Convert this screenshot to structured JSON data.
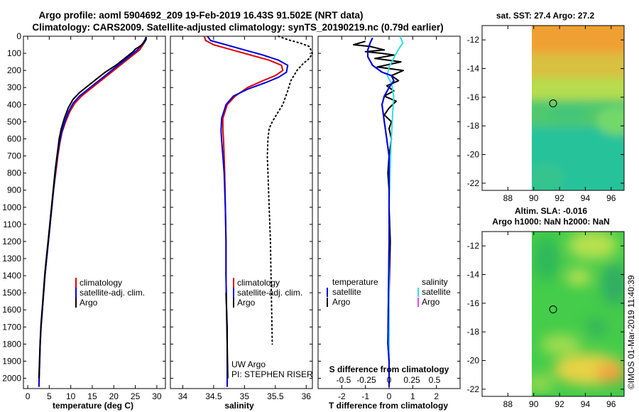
{
  "title": {
    "line1": "Argo profile: aoml 5904692_209 19-Feb-2019 16.43S 91.502E (NRT data)",
    "line2": "Climatology: CARS2009. Satellite-adjusted climatology: synTS_20190219.nc (0.79d earlier)"
  },
  "colors": {
    "climatology": "#e00000",
    "satellite": "#0000dd",
    "argo": "#000000",
    "sal_sat": "#33dddd",
    "sal_argo": "#ee44ee",
    "map_white": "#ffffff"
  },
  "depth_ticks": [
    0,
    100,
    200,
    300,
    400,
    500,
    600,
    700,
    800,
    900,
    1000,
    1100,
    1200,
    1300,
    1400,
    1500,
    1600,
    1700,
    1800,
    1900,
    2000
  ],
  "chart_data": [
    {
      "type": "line",
      "id": "temperature",
      "xlabel": "temperature (deg C)",
      "ylabel": "",
      "xlim": [
        -1,
        32
      ],
      "ylim": [
        2060,
        0
      ],
      "xticks": [
        0,
        5,
        10,
        15,
        20,
        25,
        30
      ],
      "xtick_labels": [
        "0",
        "5",
        "10",
        "15",
        "20",
        "25",
        "30"
      ],
      "legend": [
        "climatology",
        "satellite-adj. clim.",
        "Argo"
      ],
      "series": [
        {
          "name": "climatology",
          "x": [
            27.6,
            27.4,
            26.8,
            26.0,
            24.5,
            22.5,
            20.5,
            18.5,
            16.5,
            14.5,
            12.5,
            11.0,
            9.8,
            8.8,
            8.0,
            7.5,
            7.0,
            6.5,
            6.0,
            5.6,
            5.2,
            4.8,
            4.4,
            4.0,
            3.7,
            3.4,
            3.1,
            2.9,
            2.6
          ],
          "y": [
            5,
            20,
            50,
            80,
            110,
            150,
            190,
            230,
            270,
            310,
            350,
            390,
            440,
            500,
            560,
            620,
            700,
            800,
            900,
            1000,
            1100,
            1200,
            1300,
            1400,
            1500,
            1600,
            1700,
            1800,
            2050
          ]
        },
        {
          "name": "satellite-adj. clim.",
          "x": [
            27.5,
            27.3,
            26.5,
            25.5,
            24.0,
            22.0,
            20.0,
            18.0,
            16.0,
            14.0,
            12.0,
            10.6,
            9.5,
            8.6,
            7.9,
            7.4,
            6.9,
            6.4,
            6.0,
            5.6,
            5.2,
            4.8,
            4.4,
            4.0,
            3.7,
            3.4,
            3.1,
            2.9,
            2.6
          ],
          "y": [
            5,
            20,
            50,
            80,
            110,
            150,
            190,
            230,
            270,
            310,
            350,
            390,
            440,
            500,
            560,
            620,
            700,
            800,
            900,
            1000,
            1100,
            1200,
            1300,
            1400,
            1500,
            1600,
            1700,
            1800,
            2050
          ]
        },
        {
          "name": "Argo",
          "x": [
            27.5,
            27.5,
            27.0,
            26.0,
            25.0,
            24.5,
            23.5,
            22.0,
            20.5,
            18.0,
            16.0,
            14.0,
            12.0,
            10.5,
            9.4,
            8.5,
            7.8,
            7.3,
            6.9,
            6.4,
            6.0,
            5.6,
            5.2,
            4.8,
            4.4,
            4.0,
            3.7,
            3.4,
            3.1,
            2.9,
            2.6
          ],
          "y": [
            5,
            20,
            40,
            60,
            75,
            90,
            110,
            140,
            170,
            210,
            250,
            290,
            330,
            370,
            420,
            480,
            540,
            600,
            680,
            780,
            880,
            980,
            1080,
            1180,
            1280,
            1380,
            1480,
            1580,
            1680,
            1780,
            2000
          ]
        }
      ]
    },
    {
      "type": "line",
      "id": "salinity",
      "xlabel": "salinity",
      "ylabel": "",
      "xlim": [
        33.8,
        36.1
      ],
      "ylim": [
        2060,
        0
      ],
      "xticks": [
        34,
        34.5,
        35,
        35.5,
        36
      ],
      "xtick_labels": [
        "34",
        "34.5",
        "35",
        "35.5",
        "36"
      ],
      "legend": [
        "climatology",
        "satellite-adj. clim.",
        "Argo"
      ],
      "annotations": [
        "UW Argo",
        "PI: STEPHEN RISER"
      ],
      "series": [
        {
          "name": "climatology",
          "x": [
            34.35,
            34.37,
            34.5,
            34.8,
            35.1,
            35.4,
            35.6,
            35.62,
            35.5,
            35.3,
            35.05,
            34.85,
            34.72,
            34.65,
            34.65,
            34.66,
            34.67,
            34.68,
            34.69,
            34.7,
            34.7,
            34.71,
            34.72,
            34.72
          ],
          "y": [
            0,
            25,
            50,
            80,
            110,
            140,
            170,
            200,
            230,
            260,
            300,
            350,
            400,
            480,
            550,
            600,
            700,
            800,
            1000,
            1200,
            1400,
            1600,
            1800,
            2050
          ]
        },
        {
          "name": "satellite-adj. clim.",
          "x": [
            34.4,
            34.45,
            34.7,
            35.0,
            35.3,
            35.55,
            35.7,
            35.68,
            35.55,
            35.35,
            35.05,
            34.82,
            34.7,
            34.63,
            34.62,
            34.63,
            34.65,
            34.67,
            34.69,
            34.7,
            34.7,
            34.71,
            34.72,
            34.72
          ],
          "y": [
            0,
            25,
            50,
            80,
            110,
            140,
            170,
            210,
            240,
            270,
            310,
            350,
            400,
            480,
            550,
            610,
            700,
            800,
            1000,
            1200,
            1400,
            1600,
            1800,
            2050
          ]
        },
        {
          "name": "Argo",
          "x": [
            34.7,
            34.71,
            34.72,
            34.72,
            34.73
          ],
          "y": [
            1500,
            1600,
            1700,
            1800,
            2000
          ]
        },
        {
          "name": "salinity-std",
          "style": "dotted",
          "x": [
            35.55,
            35.7,
            35.9,
            36.05,
            36.1,
            36.05,
            35.95,
            35.85,
            35.75,
            35.7,
            35.62,
            35.55,
            35.45,
            35.4,
            35.38,
            35.37,
            35.38,
            35.4,
            35.42,
            35.43,
            35.45
          ],
          "y": [
            0,
            20,
            40,
            60,
            100,
            130,
            160,
            200,
            260,
            320,
            400,
            440,
            500,
            540,
            600,
            700,
            800,
            1000,
            1200,
            1400,
            1800
          ]
        }
      ]
    },
    {
      "type": "line",
      "id": "difference",
      "xlabel": "T difference from climatology",
      "xlabel_top": "S difference from climatology",
      "xlim": [
        -3,
        3
      ],
      "ylim": [
        2060,
        0
      ],
      "xticks": [
        -2,
        -1,
        0,
        1,
        2
      ],
      "xtick_labels": [
        "-2",
        "-1",
        "0",
        "1",
        "2"
      ],
      "s_xticks": [
        -0.5,
        -0.25,
        0,
        0.25,
        0.5
      ],
      "s_xtick_labels": [
        "-0.5",
        "-0.25",
        "0",
        "0.25",
        "0.5"
      ],
      "legend_left_title": "temperature",
      "legend_right_title": "salinity",
      "legend": [
        "satellite",
        "Argo",
        "satellite",
        "Argo"
      ],
      "series": [
        {
          "name": "T satellite",
          "x": [
            -0.7,
            -0.8,
            -0.9,
            -0.9,
            -0.7,
            -0.3,
            0.1,
            0.2,
            0.0,
            -0.2,
            -0.3,
            -0.25,
            -0.2,
            -0.15,
            -0.1,
            -0.05,
            0.0,
            0.0,
            0.0,
            0.0,
            -0.05,
            0.0,
            0.0
          ],
          "y": [
            10,
            40,
            80,
            120,
            170,
            210,
            230,
            260,
            300,
            350,
            400,
            450,
            500,
            550,
            600,
            650,
            700,
            800,
            1000,
            1200,
            1800,
            1900,
            2050
          ]
        },
        {
          "name": "T Argo",
          "x": [
            -1.0,
            -1.5,
            -0.8,
            -0.2,
            -1.0,
            -0.3,
            0.2,
            -0.6,
            0.5,
            -0.5,
            0.6,
            0.1,
            0.4,
            -0.1,
            0.2,
            -0.2,
            0.3,
            0.0,
            -0.2,
            0.1,
            0.0,
            0.1,
            0.0,
            -0.05,
            0.0,
            0.0,
            0.05,
            0.0,
            0.0
          ],
          "y": [
            30,
            50,
            60,
            80,
            90,
            100,
            110,
            130,
            150,
            180,
            200,
            230,
            260,
            290,
            320,
            350,
            380,
            420,
            460,
            500,
            540,
            600,
            700,
            800,
            900,
            1000,
            1200,
            1500,
            2000
          ]
        },
        {
          "name": "S satellite",
          "x": [
            0.12,
            0.15,
            0.1,
            0.05,
            0.0,
            -0.02,
            0.03,
            0.05,
            0.04,
            0.03,
            0.02,
            0.01,
            0.0,
            0.0,
            0.0
          ],
          "y": [
            0,
            40,
            80,
            130,
            180,
            230,
            280,
            350,
            450,
            550,
            650,
            800,
            1000,
            1400,
            2000
          ]
        }
      ]
    },
    {
      "type": "heatmap",
      "id": "sst_map",
      "title": "sat. SST: 27.4 Argo: 27.2",
      "xlim": [
        86,
        97
      ],
      "ylim": [
        -22.5,
        -11
      ],
      "xticks": [
        88,
        90,
        92,
        94,
        96
      ],
      "xtick_labels": [
        "88",
        "90",
        "92",
        "94",
        "96"
      ],
      "yticks": [
        -12,
        -14,
        -16,
        -18,
        -20,
        -22
      ],
      "ytick_labels": [
        "-12",
        "-14",
        "-16",
        "-18",
        "-20",
        "-22"
      ],
      "argo_position": [
        91.502,
        -16.43
      ],
      "data_start_lon": 90
    },
    {
      "type": "heatmap",
      "id": "sla_map",
      "title": "Altim. SLA: -0.016",
      "subtitle": "Argo h1000: NaN h2000: NaN",
      "xlim": [
        86,
        97
      ],
      "ylim": [
        -22.5,
        -11
      ],
      "xticks": [
        88,
        90,
        92,
        94,
        96
      ],
      "xtick_labels": [
        "88",
        "90",
        "92",
        "94",
        "96"
      ],
      "yticks": [
        -12,
        -14,
        -16,
        -18,
        -20,
        -22
      ],
      "ytick_labels": [
        "-12",
        "-14",
        "-16",
        "-18",
        "-20",
        "-22"
      ],
      "argo_position": [
        91.502,
        -16.43
      ],
      "data_start_lon": 90
    }
  ],
  "stamp": "©IMOS 01-Mar-2019 11:40:39"
}
